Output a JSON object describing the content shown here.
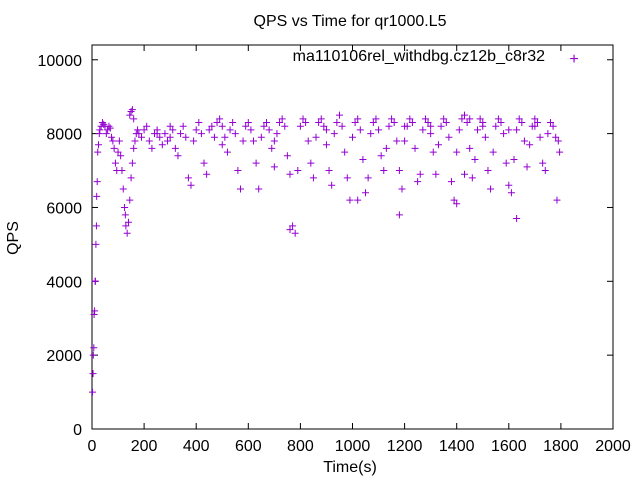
{
  "chart_data": {
    "type": "scatter",
    "title": "QPS vs Time for qr1000.L5",
    "xlabel": "Time(s)",
    "ylabel": "QPS",
    "xlim": [
      0,
      2000
    ],
    "ylim": [
      0,
      10400
    ],
    "x_ticks": [
      0,
      200,
      400,
      600,
      800,
      1000,
      1200,
      1400,
      1600,
      1800,
      2000
    ],
    "y_ticks": [
      0,
      2000,
      4000,
      6000,
      8000,
      10000
    ],
    "x_tick_labels": [
      "0",
      "200",
      "400",
      "600",
      "800",
      "1000",
      "1200",
      "1400",
      "1600",
      "1800",
      "2000"
    ],
    "y_tick_labels": [
      "0",
      "2000",
      "4000",
      "6000",
      "8000",
      "10000"
    ],
    "grid": false,
    "legend_position": "top-right",
    "marker": "+",
    "series": [
      {
        "name": "ma110106rel_withdbg.cz12b_c8r32",
        "color": "#9400d3",
        "points": [
          [
            2,
            1000
          ],
          [
            4,
            1500
          ],
          [
            5,
            2000
          ],
          [
            7,
            2200
          ],
          [
            8,
            3100
          ],
          [
            10,
            3200
          ],
          [
            12,
            4000
          ],
          [
            13,
            4000
          ],
          [
            15,
            5000
          ],
          [
            17,
            5500
          ],
          [
            18,
            6300
          ],
          [
            20,
            6700
          ],
          [
            22,
            7500
          ],
          [
            25,
            7700
          ],
          [
            28,
            8000
          ],
          [
            30,
            8100
          ],
          [
            35,
            8200
          ],
          [
            40,
            8300
          ],
          [
            45,
            8250
          ],
          [
            50,
            8200
          ],
          [
            55,
            8000
          ],
          [
            60,
            8100
          ],
          [
            65,
            8200
          ],
          [
            70,
            8150
          ],
          [
            75,
            7900
          ],
          [
            80,
            7800
          ],
          [
            85,
            7600
          ],
          [
            90,
            7200
          ],
          [
            95,
            7000
          ],
          [
            100,
            7500
          ],
          [
            105,
            7800
          ],
          [
            110,
            7400
          ],
          [
            115,
            7000
          ],
          [
            120,
            6500
          ],
          [
            125,
            6000
          ],
          [
            128,
            5800
          ],
          [
            130,
            5500
          ],
          [
            135,
            5300
          ],
          [
            140,
            5600
          ],
          [
            145,
            6200
          ],
          [
            150,
            6800
          ],
          [
            155,
            7200
          ],
          [
            160,
            7600
          ],
          [
            165,
            7800
          ],
          [
            170,
            8000
          ],
          [
            175,
            8100
          ],
          [
            150,
            8600
          ],
          [
            155,
            8650
          ],
          [
            145,
            8500
          ],
          [
            160,
            8400
          ],
          [
            180,
            8000
          ],
          [
            190,
            7900
          ],
          [
            200,
            8100
          ],
          [
            210,
            8200
          ],
          [
            220,
            7800
          ],
          [
            230,
            7600
          ],
          [
            240,
            8000
          ],
          [
            250,
            8100
          ],
          [
            260,
            7900
          ],
          [
            270,
            7700
          ],
          [
            280,
            8000
          ],
          [
            290,
            7800
          ],
          [
            300,
            8200
          ],
          [
            310,
            8100
          ],
          [
            320,
            7600
          ],
          [
            330,
            7400
          ],
          [
            340,
            8000
          ],
          [
            350,
            8200
          ],
          [
            360,
            7900
          ],
          [
            370,
            6800
          ],
          [
            380,
            6600
          ],
          [
            390,
            7800
          ],
          [
            400,
            8100
          ],
          [
            410,
            8300
          ],
          [
            420,
            8000
          ],
          [
            430,
            7200
          ],
          [
            440,
            6900
          ],
          [
            450,
            8100
          ],
          [
            460,
            8200
          ],
          [
            470,
            7900
          ],
          [
            480,
            8300
          ],
          [
            490,
            8400
          ],
          [
            500,
            8200
          ],
          [
            510,
            7900
          ],
          [
            520,
            7500
          ],
          [
            530,
            8100
          ],
          [
            540,
            8300
          ],
          [
            550,
            8000
          ],
          [
            560,
            7000
          ],
          [
            570,
            6500
          ],
          [
            580,
            7800
          ],
          [
            590,
            8200
          ],
          [
            600,
            8300
          ],
          [
            610,
            8100
          ],
          [
            620,
            7800
          ],
          [
            630,
            7200
          ],
          [
            640,
            6500
          ],
          [
            650,
            7900
          ],
          [
            660,
            8200
          ],
          [
            670,
            8300
          ],
          [
            680,
            8100
          ],
          [
            690,
            7600
          ],
          [
            700,
            7100
          ],
          [
            710,
            8000
          ],
          [
            720,
            8300
          ],
          [
            730,
            8400
          ],
          [
            740,
            8200
          ],
          [
            750,
            7400
          ],
          [
            760,
            6900
          ],
          [
            770,
            5500
          ],
          [
            780,
            5300
          ],
          [
            790,
            7000
          ],
          [
            800,
            8200
          ],
          [
            810,
            8400
          ],
          [
            820,
            8300
          ],
          [
            830,
            7800
          ],
          [
            840,
            7200
          ],
          [
            850,
            6800
          ],
          [
            860,
            7900
          ],
          [
            870,
            8300
          ],
          [
            880,
            8400
          ],
          [
            890,
            8200
          ],
          [
            900,
            7700
          ],
          [
            910,
            7000
          ],
          [
            920,
            6600
          ],
          [
            930,
            8000
          ],
          [
            940,
            8300
          ],
          [
            950,
            8500
          ],
          [
            960,
            8200
          ],
          [
            970,
            7500
          ],
          [
            980,
            6800
          ],
          [
            990,
            6200
          ],
          [
            1000,
            7900
          ],
          [
            1010,
            8300
          ],
          [
            1020,
            8400
          ],
          [
            1030,
            8100
          ],
          [
            1040,
            7300
          ],
          [
            1050,
            6400
          ],
          [
            1060,
            6800
          ],
          [
            1070,
            8000
          ],
          [
            1080,
            8300
          ],
          [
            1090,
            8400
          ],
          [
            1100,
            8100
          ],
          [
            1110,
            7400
          ],
          [
            1120,
            7000
          ],
          [
            1130,
            7600
          ],
          [
            1140,
            8200
          ],
          [
            1150,
            8400
          ],
          [
            1160,
            8300
          ],
          [
            1170,
            7800
          ],
          [
            1180,
            7000
          ],
          [
            1190,
            6500
          ],
          [
            1200,
            7800
          ],
          [
            1210,
            8200
          ],
          [
            1220,
            8400
          ],
          [
            1230,
            8300
          ],
          [
            1240,
            7600
          ],
          [
            1250,
            6700
          ],
          [
            1260,
            6900
          ],
          [
            1270,
            8100
          ],
          [
            1280,
            8400
          ],
          [
            1290,
            8300
          ],
          [
            1300,
            8200
          ],
          [
            1310,
            7500
          ],
          [
            1320,
            6900
          ],
          [
            1330,
            7700
          ],
          [
            1340,
            8200
          ],
          [
            1350,
            8400
          ],
          [
            1360,
            8300
          ],
          [
            1370,
            7900
          ],
          [
            1380,
            6700
          ],
          [
            1390,
            6200
          ],
          [
            1400,
            7500
          ],
          [
            1410,
            8100
          ],
          [
            1420,
            8400
          ],
          [
            1430,
            8500
          ],
          [
            1440,
            8300
          ],
          [
            1450,
            7600
          ],
          [
            1460,
            6800
          ],
          [
            1470,
            7300
          ],
          [
            1480,
            8100
          ],
          [
            1490,
            8400
          ],
          [
            1500,
            8300
          ],
          [
            1510,
            7900
          ],
          [
            1520,
            7000
          ],
          [
            1530,
            6500
          ],
          [
            1540,
            7500
          ],
          [
            1550,
            8200
          ],
          [
            1560,
            8400
          ],
          [
            1570,
            8300
          ],
          [
            1580,
            8000
          ],
          [
            1590,
            7200
          ],
          [
            1600,
            6600
          ],
          [
            1610,
            6400
          ],
          [
            1620,
            7300
          ],
          [
            1630,
            8100
          ],
          [
            1640,
            8400
          ],
          [
            1650,
            8300
          ],
          [
            1660,
            7800
          ],
          [
            1670,
            7100
          ],
          [
            1680,
            7700
          ],
          [
            1690,
            8200
          ],
          [
            1700,
            8400
          ],
          [
            1710,
            8300
          ],
          [
            1720,
            7900
          ],
          [
            1730,
            7200
          ],
          [
            1740,
            7000
          ],
          [
            1750,
            8000
          ],
          [
            1760,
            8300
          ],
          [
            1770,
            8200
          ],
          [
            1780,
            7900
          ],
          [
            1790,
            7800
          ],
          [
            1795,
            7500
          ],
          [
            1785,
            6200
          ],
          [
            1400,
            6100
          ],
          [
            1430,
            6900
          ],
          [
            1020,
            6200
          ],
          [
            1180,
            5800
          ],
          [
            1630,
            5700
          ],
          [
            760,
            5400
          ],
          [
            1200,
            8200
          ],
          [
            900,
            8100
          ],
          [
            1300,
            8000
          ],
          [
            1450,
            8400
          ],
          [
            1500,
            8200
          ],
          [
            1600,
            8100
          ],
          [
            1700,
            8200
          ],
          [
            700,
            7800
          ],
          [
            500,
            7700
          ],
          [
            300,
            7900
          ],
          [
            250,
            8000
          ]
        ]
      }
    ]
  }
}
